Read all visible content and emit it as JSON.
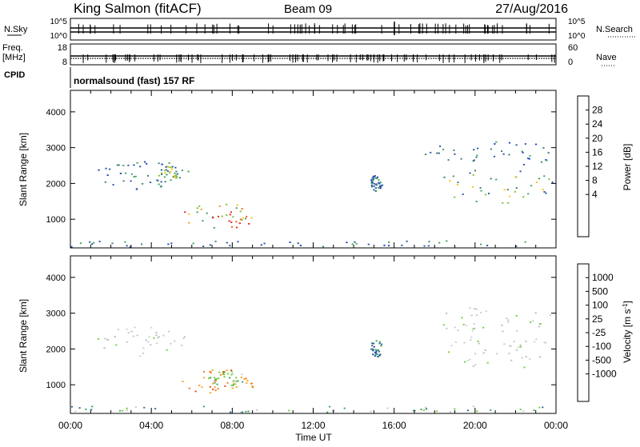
{
  "header": {
    "station": "King Salmon (fitACF)",
    "beam": "Beam 09",
    "date": "27/Aug/2016"
  },
  "top_panels": {
    "noise": {
      "left_label": "N.Sky",
      "right_label": "N.Search",
      "left_ticks": [
        "10^5",
        "10^0"
      ],
      "right_ticks": [
        "10^5",
        "10^0"
      ]
    },
    "freq": {
      "left_label_1": "Freq.",
      "left_label_2": "[MHz]",
      "left_ticks": [
        "18",
        "8"
      ],
      "right_label": "Nave",
      "right_ticks": [
        "60",
        "0"
      ]
    },
    "cpid": {
      "label": "CPID",
      "text": "normalsound (fast) 157 RF"
    }
  },
  "colorbars": {
    "power": {
      "label": "Power [dB]",
      "ticks": [
        "28",
        "24",
        "20",
        "16",
        "12",
        "8",
        "4"
      ],
      "colors": [
        "#e8211a",
        "#f25c13",
        "#f7931c",
        "#f5c21b",
        "#7dc12f",
        "#3fa35a",
        "#3f7f7a",
        "#2b55a3",
        "#1f3fc0",
        "#1010ff"
      ]
    },
    "velocity": {
      "label": "Velocity [m s",
      "label_sup": "-1",
      "label_end": "]",
      "ticks": [
        "1000",
        "500",
        "100",
        "25",
        "-25",
        "-100",
        "-500",
        "-1000"
      ],
      "colors": [
        "#2a3fb5",
        "#2d6f9c",
        "#3fa35a",
        "#6ed233",
        "#c8c8c8",
        "#c8c8c8",
        "#f7a21c",
        "#f5761a",
        "#f04a17",
        "#e01a12"
      ]
    }
  },
  "chart_data": [
    {
      "type": "heatmap",
      "title": "",
      "quantity": "Power",
      "xlabel": "",
      "ylabel": "Slant Range [km]",
      "xlim": [
        0,
        24
      ],
      "ylim": [
        200,
        4600
      ],
      "x_ticks": [
        "00:00",
        "04:00",
        "08:00",
        "12:00",
        "16:00",
        "20:00",
        "00:00"
      ],
      "y_ticks": [
        "1000",
        "2000",
        "3000",
        "4000"
      ],
      "regions": [
        {
          "t": [
            1.3,
            5.8
          ],
          "r": [
            1850,
            2700
          ],
          "level": "low"
        },
        {
          "t": [
            4.3,
            5.6
          ],
          "r": [
            2050,
            2500
          ],
          "level": "mid"
        },
        {
          "t": [
            5.5,
            9.2
          ],
          "r": [
            750,
            1450
          ],
          "level": "high"
        },
        {
          "t": [
            14.8,
            15.4
          ],
          "r": [
            1800,
            2250
          ],
          "level": "low"
        },
        {
          "t": [
            18.0,
            24.0
          ],
          "r": [
            1450,
            2400
          ],
          "level": "mid"
        },
        {
          "t": [
            17.5,
            24.0
          ],
          "r": [
            2500,
            3200
          ],
          "level": "low"
        },
        {
          "t": [
            0.0,
            24.0
          ],
          "r": [
            250,
            420
          ],
          "level": "low"
        }
      ]
    },
    {
      "type": "heatmap",
      "title": "",
      "quantity": "Velocity",
      "xlabel": "Time UT",
      "ylabel": "Slant Range [km]",
      "xlim": [
        0,
        24
      ],
      "ylim": [
        200,
        4600
      ],
      "x_ticks": [
        "00:00",
        "04:00",
        "08:00",
        "12:00",
        "16:00",
        "20:00",
        "00:00"
      ],
      "y_ticks": [
        "1000",
        "2000",
        "3000",
        "4000"
      ],
      "regions": [
        {
          "t": [
            1.3,
            5.8
          ],
          "r": [
            1800,
            2700
          ],
          "level": "ground"
        },
        {
          "t": [
            5.5,
            9.2
          ],
          "r": [
            750,
            1450
          ],
          "level": "negative"
        },
        {
          "t": [
            6.8,
            8.6
          ],
          "r": [
            1000,
            1400
          ],
          "level": "positive"
        },
        {
          "t": [
            14.8,
            15.4
          ],
          "r": [
            1800,
            2250
          ],
          "level": "positive_high"
        },
        {
          "t": [
            18.0,
            24.0
          ],
          "r": [
            1450,
            2400
          ],
          "level": "ground"
        },
        {
          "t": [
            17.5,
            24.0
          ],
          "r": [
            2500,
            3200
          ],
          "level": "ground"
        },
        {
          "t": [
            0.0,
            24.0
          ],
          "r": [
            250,
            420
          ],
          "level": "scatter_pos"
        }
      ]
    }
  ]
}
